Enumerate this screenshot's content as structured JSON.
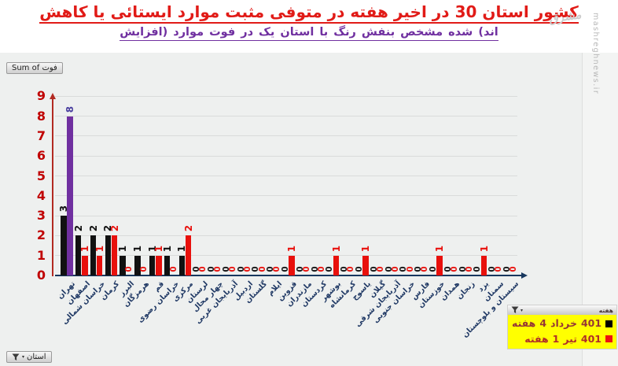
{
  "header": {
    "title": "کاهش یا ایستائی موارد مثبت متوفی در هفته اخیر در 30 استان کشور",
    "subtitle": "(افزایش موارد فوت در یک استان با رنگ بنفش مشخص شده اند)",
    "title_color": "#e11b17",
    "subtitle_color": "#7030a0"
  },
  "watermark": "mashreghnews.ir",
  "site_logo": "مشرق",
  "controls": {
    "value_field_button": "Sum of فوت",
    "axis_filter_button": "استان",
    "legend_filter_button": "هفته"
  },
  "legend": {
    "background": "#ffff00",
    "items": [
      {
        "label": "هفته 4 خرداد 401",
        "marker_color": "#000000",
        "text_color": "#953735"
      },
      {
        "label": "هفته 1 تیر 401",
        "marker_color": "#ee1111",
        "text_color": "#b02e28"
      }
    ]
  },
  "chart_data": {
    "type": "bar",
    "title": "Sum of فوت",
    "categories": [
      "تهران",
      "اصفهان",
      "خراسان شمالی",
      "کرمان",
      "البرز",
      "هرمزگان",
      "قم",
      "خراسان رضوی",
      "مرکزی",
      "لرستان",
      "چهار محال",
      "آذربایجان غربی",
      "اردبیل",
      "گلستان",
      "ایلام",
      "قزوین",
      "مازندران",
      "کردستان",
      "بوشهر",
      "کرمانشاه",
      "یاسوج",
      "گیلان",
      "آذربایجان شرقی",
      "خراسان جنوبی",
      "فارس",
      "خوزستان",
      "همدان",
      "زنجان",
      "یزد",
      "سمنان",
      "سیستان و بلوچستان"
    ],
    "series": [
      {
        "name": "هفته 4 خرداد 401",
        "color": "#111111",
        "label_color": "#111111",
        "values": [
          3,
          2,
          2,
          2,
          1,
          1,
          1,
          1,
          1,
          0,
          0,
          0,
          0,
          0,
          0,
          0,
          0,
          0,
          0,
          0,
          0,
          0,
          0,
          0,
          0,
          0,
          0,
          0,
          0,
          0,
          0
        ]
      },
      {
        "name": "هفته 1 تیر 401",
        "color": "#e8100c",
        "label_color": "#e8100c",
        "values": [
          8,
          1,
          1,
          2,
          0,
          0,
          1,
          0,
          2,
          0,
          0,
          0,
          0,
          0,
          0,
          1,
          0,
          0,
          1,
          0,
          1,
          0,
          0,
          0,
          0,
          1,
          0,
          0,
          1,
          0,
          0
        ]
      }
    ],
    "highlight": {
      "category": "تهران",
      "series": "هفته 1 تیر 401",
      "bar_color": "#7030a0",
      "label_color": "#4a3f9f"
    },
    "ylim": [
      0,
      9
    ],
    "y_ticks": [
      0,
      1,
      2,
      3,
      4,
      5,
      6,
      7,
      8,
      9
    ],
    "grid": true,
    "legend_position": "bottom-right",
    "axis_colors": {
      "y_labels": "#c00000",
      "y_line": "#b22a22",
      "x_line": "#17375e",
      "x_labels": "#1f3864"
    }
  }
}
